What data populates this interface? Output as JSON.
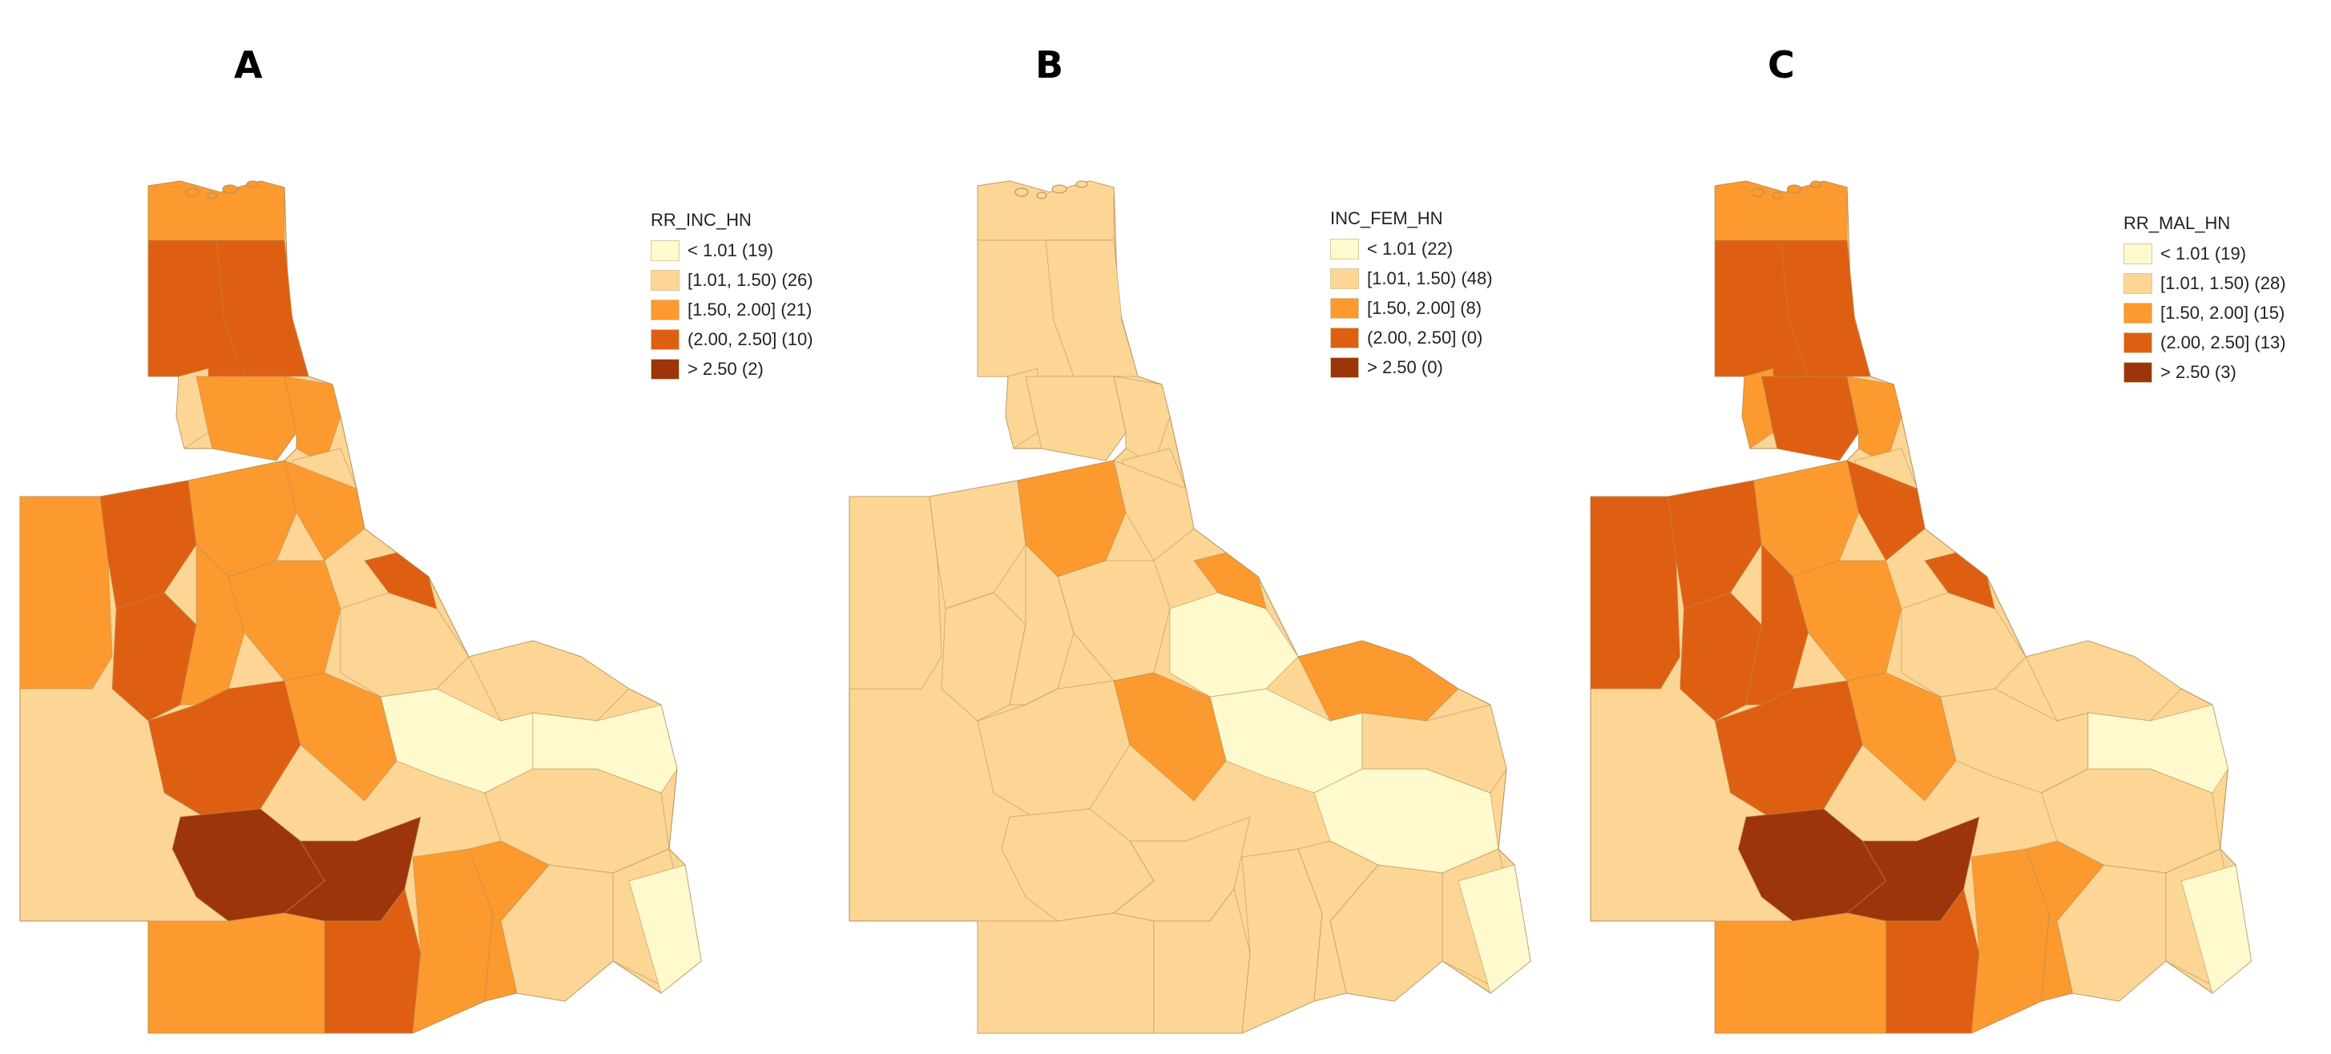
{
  "colors": {
    "c1": "#FFFACD",
    "c2": "#FDD695",
    "c3": "#FC9A2F",
    "c4": "#DF5F12",
    "c5": "#9C350A",
    "border": "#b08d5a"
  },
  "panels": [
    {
      "label": "A",
      "legend": {
        "title": "RR_INC_HN",
        "classes": [
          {
            "range": "< 1.01",
            "count": "(19)",
            "color": "c1"
          },
          {
            "range": "[1.01, 1.50)",
            "count": "(26)",
            "color": "c2"
          },
          {
            "range": "[1.50, 2.00]",
            "count": "(21)",
            "color": "c3"
          },
          {
            "range": "(2.00, 2.50]",
            "count": "(10)",
            "color": "c4"
          },
          {
            "range": "> 2.50",
            "count": "(2)",
            "color": "c5"
          }
        ]
      },
      "regions": [
        "c3",
        "c4",
        "c4",
        "c2",
        "c3",
        "c3",
        "c2",
        "c3",
        "c4",
        "c3",
        "c3",
        "c4",
        "c3",
        "c3",
        "c4",
        "c5",
        "c5",
        "c3",
        "c4",
        "c3",
        "c1",
        "c2",
        "c2",
        "c2",
        "c3",
        "c2",
        "c1",
        "c1",
        "c4",
        "c2",
        "c3"
      ]
    },
    {
      "label": "B",
      "legend": {
        "title": "INC_FEM_HN",
        "classes": [
          {
            "range": "< 1.01",
            "count": "(22)",
            "color": "c1"
          },
          {
            "range": "[1.01, 1.50)",
            "count": "(48)",
            "color": "c2"
          },
          {
            "range": "[1.50, 2.00]",
            "count": "(8)",
            "color": "c3"
          },
          {
            "range": "(2.00, 2.50]",
            "count": "(0)",
            "color": "c4"
          },
          {
            "range": "> 2.50",
            "count": "(0)",
            "color": "c5"
          }
        ]
      },
      "regions": [
        "c2",
        "c2",
        "c2",
        "c2",
        "c2",
        "c2",
        "c2",
        "c2",
        "c2",
        "c3",
        "c2",
        "c2",
        "c2",
        "c2",
        "c2",
        "c2",
        "c2",
        "c2",
        "c2",
        "c2",
        "c1",
        "c1",
        "c2",
        "c1",
        "c3",
        "c3",
        "c2",
        "c1",
        "c3",
        "c2",
        "c2"
      ]
    },
    {
      "label": "C",
      "legend": {
        "title": "RR_MAL_HN",
        "classes": [
          {
            "range": "< 1.01",
            "count": "(19)",
            "color": "c1"
          },
          {
            "range": "[1.01, 1.50)",
            "count": "(28)",
            "color": "c2"
          },
          {
            "range": "[1.50, 2.00]",
            "count": "(15)",
            "color": "c3"
          },
          {
            "range": "(2.00, 2.50]",
            "count": "(13)",
            "color": "c4"
          },
          {
            "range": "> 2.50",
            "count": "(3)",
            "color": "c5"
          }
        ]
      },
      "regions": [
        "c3",
        "c4",
        "c4",
        "c3",
        "c4",
        "c3",
        "c2",
        "c4",
        "c4",
        "c3",
        "c4",
        "c4",
        "c4",
        "c3",
        "c4",
        "c5",
        "c5",
        "c3",
        "c4",
        "c3",
        "c2",
        "c2",
        "c2",
        "c2",
        "c3",
        "c2",
        "c1",
        "c1",
        "c4",
        "c2",
        "c3"
      ]
    }
  ]
}
